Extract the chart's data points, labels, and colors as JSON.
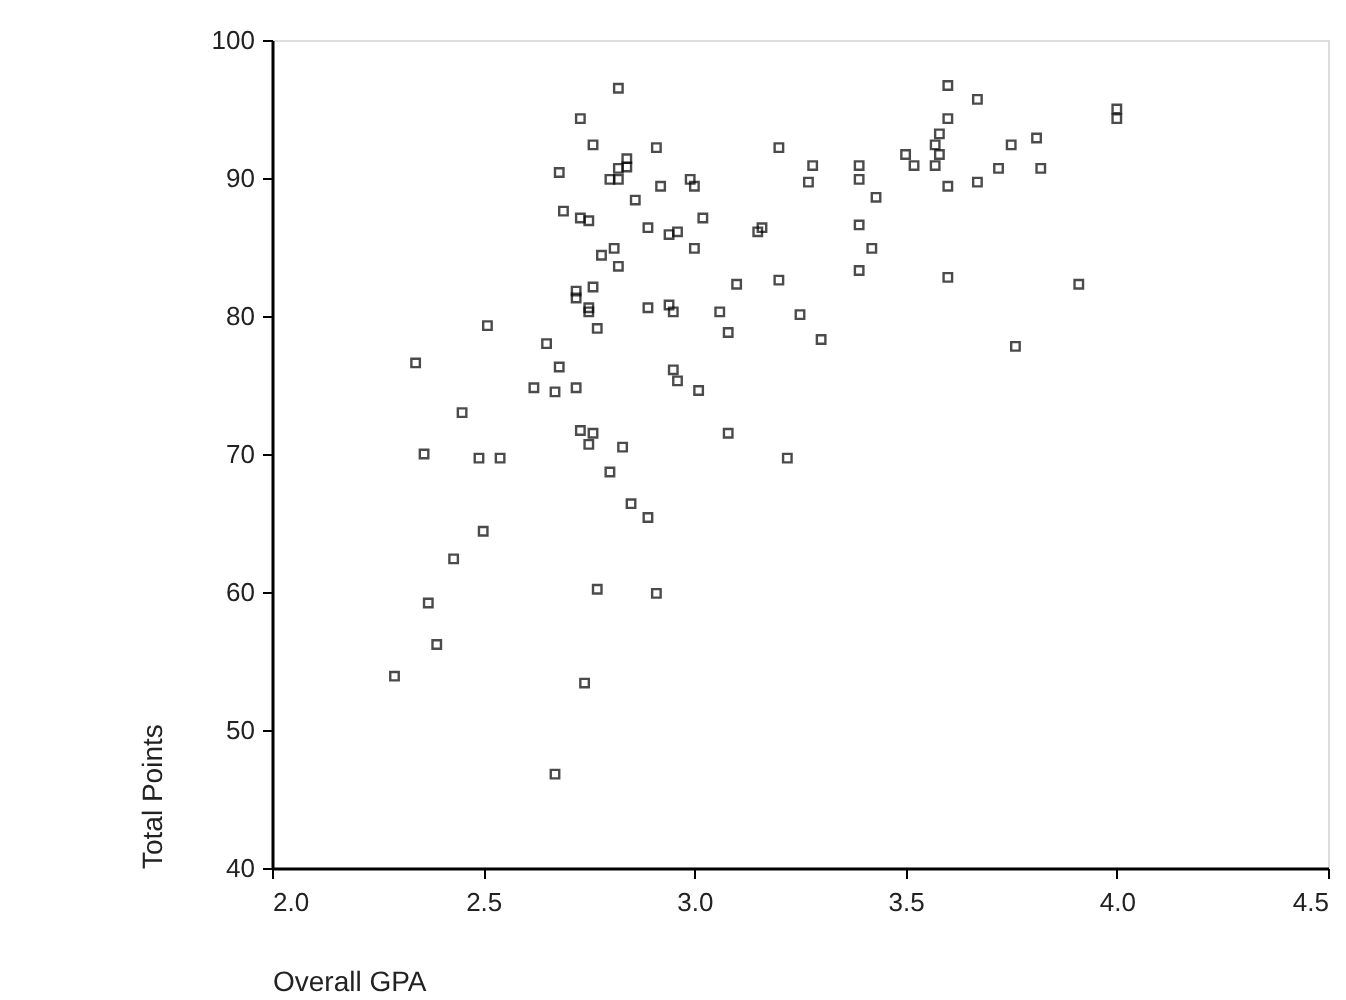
{
  "chart_data": {
    "type": "scatter",
    "xlabel": "Overall GPA",
    "ylabel": "Total Points",
    "xlim": [
      2.0,
      4.5
    ],
    "xticks": [
      {
        "value": 2.0,
        "label": "2.0"
      },
      {
        "value": 2.5,
        "label": "2.5"
      },
      {
        "value": 3.0,
        "label": "3.0"
      },
      {
        "value": 3.5,
        "label": "3.5"
      },
      {
        "value": 4.0,
        "label": "4.0"
      },
      {
        "value": 4.5,
        "label": "4.5"
      }
    ],
    "ylim": [
      40,
      100
    ],
    "yticks": [
      40,
      50,
      60,
      70,
      80,
      90,
      100
    ],
    "grid": false,
    "marker": "square",
    "series": [
      {
        "color": "#000000",
        "x": [
          2.82,
          3.6,
          3.67,
          4.0,
          4.0,
          2.73,
          3.6,
          2.76,
          3.75,
          3.81,
          2.91,
          3.2,
          3.58,
          3.57,
          3.58,
          3.5,
          3.52,
          3.57,
          3.72,
          3.82,
          3.28,
          3.39,
          3.39,
          3.27,
          3.6,
          3.67,
          3.43,
          2.68,
          2.84,
          2.84,
          2.82,
          2.8,
          2.82,
          2.92,
          2.99,
          3.0,
          2.86,
          2.69,
          2.73,
          2.75,
          2.89,
          2.94,
          2.96,
          3.02,
          3.15,
          3.16,
          3.39,
          2.78,
          2.81,
          2.82,
          3.0,
          3.42,
          3.39,
          3.6,
          3.91,
          3.2,
          3.1,
          2.72,
          2.72,
          2.76,
          2.75,
          2.75,
          2.89,
          2.94,
          2.95,
          3.06,
          3.25,
          3.08,
          3.3,
          3.76,
          2.77,
          2.51,
          2.65,
          2.68,
          2.95,
          2.96,
          3.01,
          2.62,
          2.67,
          2.72,
          2.34,
          2.45,
          2.73,
          2.76,
          2.75,
          2.83,
          3.08,
          3.22,
          2.36,
          2.49,
          2.54,
          2.8,
          2.85,
          2.89,
          2.5,
          2.43,
          2.77,
          2.91,
          2.37,
          2.39,
          2.29,
          2.74,
          2.67
        ],
        "values": [
          96.5,
          96.7,
          95.7,
          95.0,
          94.3,
          94.3,
          94.3,
          92.4,
          92.4,
          92.9,
          92.2,
          92.2,
          93.2,
          92.4,
          91.7,
          91.7,
          90.9,
          90.9,
          90.7,
          90.7,
          90.9,
          90.9,
          89.9,
          89.7,
          89.4,
          89.7,
          88.6,
          90.4,
          91.4,
          90.8,
          90.7,
          89.9,
          89.9,
          89.4,
          89.9,
          89.4,
          88.4,
          87.6,
          87.1,
          86.9,
          86.4,
          85.9,
          86.1,
          87.1,
          86.1,
          86.4,
          86.6,
          84.4,
          84.9,
          83.6,
          84.9,
          84.9,
          83.3,
          82.8,
          82.3,
          82.6,
          82.3,
          81.8,
          81.3,
          82.1,
          80.6,
          80.3,
          80.6,
          80.8,
          80.3,
          80.3,
          80.1,
          78.8,
          78.3,
          77.8,
          79.1,
          79.3,
          78.0,
          76.3,
          76.1,
          75.3,
          74.6,
          74.8,
          74.5,
          74.8,
          76.6,
          73.0,
          71.7,
          71.5,
          70.7,
          70.5,
          71.5,
          69.7,
          70.0,
          69.7,
          69.7,
          68.7,
          66.4,
          65.4,
          64.4,
          62.4,
          60.2,
          59.9,
          59.2,
          56.2,
          53.9,
          53.4,
          46.8
        ]
      }
    ]
  }
}
